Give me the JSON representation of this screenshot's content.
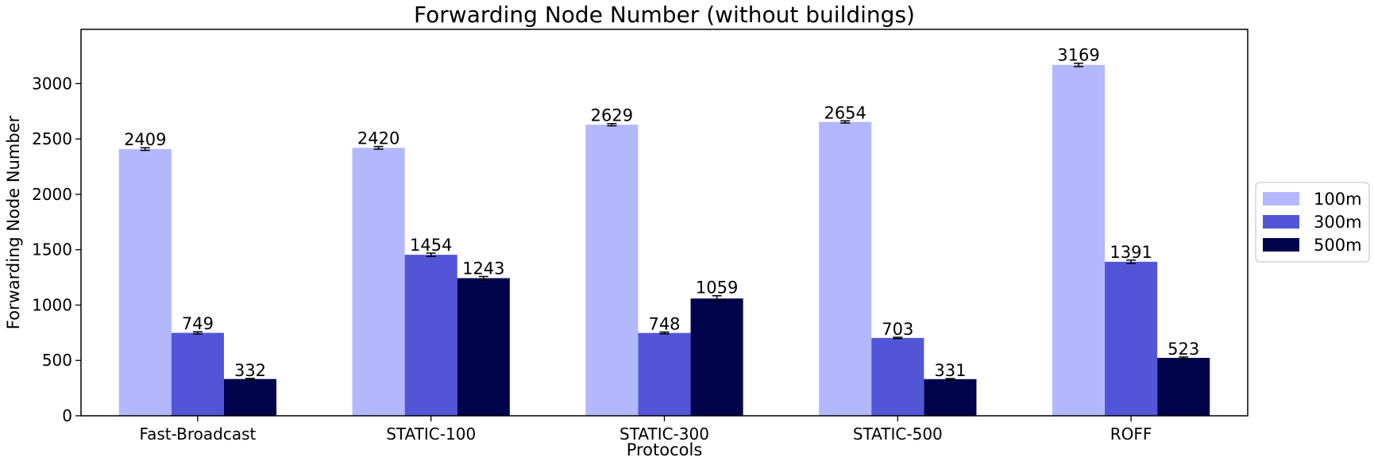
{
  "chart_data": {
    "type": "bar",
    "title": "Forwarding Node Number (without buildings)",
    "xlabel": "Protocols",
    "ylabel": "Forwarding Node Number",
    "categories": [
      "Fast-Broadcast",
      "STATIC-100",
      "STATIC-300",
      "STATIC-500",
      "ROFF"
    ],
    "series": [
      {
        "name": "100m",
        "color": "#b3b8fc",
        "values": [
          2409,
          2420,
          2629,
          2654,
          3169
        ],
        "errors": [
          12,
          12,
          10,
          10,
          15
        ]
      },
      {
        "name": "300m",
        "color": "#5256d6",
        "values": [
          749,
          1454,
          748,
          703,
          1391
        ],
        "errors": [
          10,
          15,
          8,
          6,
          15
        ]
      },
      {
        "name": "500m",
        "color": "#01044a",
        "values": [
          332,
          1243,
          1059,
          331,
          523
        ],
        "errors": [
          5,
          15,
          25,
          5,
          8
        ]
      }
    ],
    "ylim": [
      0,
      3490
    ],
    "yticks": [
      0,
      500,
      1000,
      1500,
      2000,
      2500,
      3000
    ],
    "legend_position": "right"
  }
}
